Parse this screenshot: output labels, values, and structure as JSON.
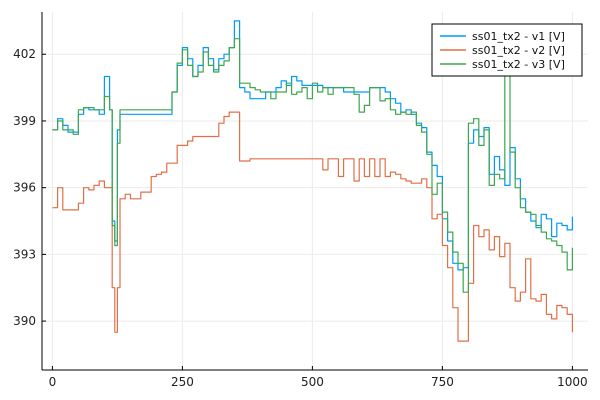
{
  "chart_data": {
    "type": "line",
    "title": "",
    "xlabel": "",
    "ylabel": "",
    "xlim": [
      -20,
      1030
    ],
    "ylim": [
      387.8,
      403.9
    ],
    "xticks": [
      0,
      250,
      500,
      750,
      1000
    ],
    "yticks": [
      390,
      393,
      396,
      399,
      402
    ],
    "xtick_labels": [
      "0",
      "250",
      "500",
      "750",
      "1000"
    ],
    "ytick_labels": [
      "390",
      "393",
      "396",
      "399",
      "402"
    ],
    "grid": true,
    "legend_position": "top-right",
    "series": [
      {
        "name": "ss01_tx2 - v1 [V]",
        "color": "#009AFA",
        "x": [
          0,
          10,
          20,
          30,
          40,
          50,
          60,
          70,
          80,
          90,
          100,
          110,
          115,
          120,
          125,
          130,
          140,
          150,
          160,
          170,
          180,
          190,
          200,
          210,
          220,
          230,
          240,
          250,
          260,
          270,
          280,
          290,
          300,
          310,
          320,
          330,
          340,
          350,
          360,
          370,
          380,
          390,
          400,
          410,
          420,
          430,
          440,
          450,
          460,
          470,
          480,
          490,
          500,
          510,
          520,
          530,
          540,
          550,
          560,
          570,
          580,
          590,
          600,
          610,
          620,
          630,
          640,
          650,
          660,
          670,
          680,
          690,
          700,
          710,
          720,
          730,
          740,
          750,
          760,
          770,
          780,
          790,
          800,
          810,
          820,
          830,
          840,
          850,
          860,
          870,
          880,
          890,
          900,
          910,
          920,
          930,
          940,
          950,
          960,
          970,
          980,
          990,
          1000
        ],
        "y": [
          398.6,
          399.1,
          398.8,
          398.5,
          398.5,
          399.3,
          399.6,
          399.5,
          399.5,
          399.3,
          401.0,
          399.5,
          394.5,
          393.6,
          398.6,
          399.3,
          399.3,
          399.3,
          399.3,
          399.3,
          399.3,
          399.3,
          399.3,
          399.3,
          399.3,
          400.3,
          401.5,
          402.3,
          401.8,
          401.0,
          401.5,
          402.3,
          401.8,
          401.3,
          401.8,
          402.0,
          402.3,
          403.5,
          400.5,
          400.3,
          400.0,
          400.0,
          400.0,
          400.3,
          400.3,
          400.5,
          400.8,
          400.6,
          401.0,
          400.8,
          400.6,
          400.6,
          400.6,
          400.6,
          400.5,
          400.5,
          400.5,
          400.5,
          400.3,
          400.3,
          400.3,
          400.3,
          400.3,
          400.5,
          400.5,
          400.5,
          400.3,
          400.0,
          399.8,
          399.4,
          399.5,
          399.3,
          398.9,
          398.7,
          397.6,
          397.0,
          396.5,
          394.6,
          393.6,
          392.6,
          392.3,
          392.4,
          398.0,
          398.6,
          398.3,
          398.7,
          396.6,
          397.4,
          396.8,
          396.1,
          397.8,
          396.4,
          395.5,
          394.9,
          394.5,
          394.2,
          394.8,
          394.6,
          393.8,
          394.4,
          394.3,
          394.1,
          394.7
        ]
      },
      {
        "name": "ss01_tx2 - v2 [V]",
        "color": "#E26F46",
        "x": [
          0,
          10,
          20,
          30,
          40,
          50,
          60,
          70,
          80,
          90,
          100,
          110,
          115,
          120,
          125,
          130,
          140,
          150,
          160,
          170,
          180,
          190,
          200,
          210,
          220,
          230,
          240,
          250,
          260,
          270,
          280,
          290,
          300,
          310,
          320,
          330,
          340,
          350,
          360,
          370,
          380,
          390,
          400,
          410,
          420,
          430,
          440,
          450,
          460,
          470,
          480,
          490,
          500,
          510,
          520,
          530,
          540,
          550,
          560,
          570,
          580,
          590,
          600,
          610,
          620,
          630,
          640,
          650,
          660,
          670,
          680,
          690,
          700,
          710,
          720,
          730,
          740,
          750,
          760,
          770,
          780,
          790,
          800,
          810,
          820,
          830,
          840,
          850,
          860,
          870,
          880,
          890,
          900,
          910,
          920,
          930,
          940,
          950,
          960,
          970,
          980,
          990,
          1000
        ],
        "y": [
          395.1,
          396.0,
          395.0,
          395.0,
          395.0,
          395.3,
          396.0,
          395.9,
          396.1,
          396.3,
          396.0,
          396.0,
          391.5,
          389.5,
          391.5,
          395.5,
          395.7,
          395.5,
          395.5,
          395.8,
          395.8,
          396.5,
          396.6,
          396.7,
          397.1,
          397.1,
          397.9,
          397.9,
          398.1,
          398.3,
          398.3,
          398.3,
          398.3,
          398.3,
          398.9,
          399.2,
          399.4,
          399.4,
          397.2,
          397.2,
          397.3,
          397.3,
          397.3,
          397.3,
          397.3,
          397.3,
          397.3,
          397.3,
          397.3,
          397.3,
          397.3,
          397.3,
          397.3,
          397.3,
          396.8,
          397.3,
          397.3,
          396.5,
          397.3,
          397.3,
          396.3,
          397.3,
          396.5,
          397.3,
          396.5,
          397.3,
          396.5,
          396.7,
          396.6,
          396.4,
          396.3,
          396.2,
          396.2,
          396.4,
          396.0,
          394.6,
          394.8,
          393.4,
          392.4,
          390.6,
          389.1,
          389.1,
          391.7,
          394.3,
          393.8,
          394.1,
          393.2,
          393.8,
          392.9,
          393.5,
          391.5,
          390.9,
          391.3,
          392.8,
          391.0,
          390.9,
          391.2,
          390.3,
          390.1,
          390.7,
          390.6,
          390.3,
          389.5
        ]
      },
      {
        "name": "ss01_tx2 - v3 [V]",
        "color": "#3DA64E",
        "x": [
          0,
          10,
          20,
          30,
          40,
          50,
          60,
          70,
          80,
          90,
          100,
          110,
          115,
          120,
          125,
          130,
          140,
          150,
          160,
          170,
          180,
          190,
          200,
          210,
          220,
          230,
          240,
          250,
          260,
          270,
          280,
          290,
          300,
          310,
          320,
          330,
          340,
          350,
          360,
          370,
          380,
          390,
          400,
          410,
          420,
          430,
          440,
          450,
          460,
          470,
          480,
          490,
          500,
          510,
          520,
          530,
          540,
          550,
          560,
          570,
          580,
          590,
          600,
          610,
          620,
          630,
          640,
          650,
          660,
          670,
          680,
          690,
          700,
          710,
          720,
          730,
          740,
          750,
          760,
          770,
          780,
          790,
          800,
          810,
          820,
          830,
          840,
          850,
          860,
          870,
          880,
          890,
          900,
          910,
          920,
          930,
          940,
          950,
          960,
          970,
          980,
          990,
          1000
        ],
        "y": [
          398.6,
          399.0,
          398.6,
          398.6,
          398.4,
          399.5,
          399.6,
          399.6,
          399.5,
          399.5,
          400.1,
          399.5,
          394.3,
          393.4,
          398.0,
          399.5,
          399.5,
          399.5,
          399.5,
          399.5,
          399.5,
          399.5,
          399.5,
          399.5,
          399.5,
          400.3,
          401.6,
          402.2,
          401.5,
          401.0,
          401.2,
          402.1,
          401.5,
          401.2,
          401.5,
          401.7,
          402.3,
          402.7,
          400.7,
          400.7,
          400.5,
          400.4,
          400.3,
          400.3,
          400.0,
          400.3,
          400.3,
          400.7,
          400.2,
          400.3,
          400.5,
          400.0,
          400.7,
          400.3,
          400.5,
          400.2,
          400.5,
          400.5,
          400.5,
          400.5,
          400.2,
          399.4,
          399.7,
          400.5,
          400.5,
          399.9,
          400.0,
          399.5,
          399.3,
          399.4,
          399.3,
          399.4,
          398.8,
          398.5,
          397.5,
          395.7,
          396.2,
          394.9,
          394.0,
          393.1,
          392.6,
          391.3,
          398.9,
          399.1,
          397.9,
          398.6,
          396.1,
          396.6,
          396.4,
          402.6,
          397.6,
          396.0,
          395.1,
          394.9,
          394.8,
          394.3,
          394.0,
          393.7,
          393.6,
          393.4,
          393.1,
          392.3,
          393.3
        ]
      }
    ]
  }
}
